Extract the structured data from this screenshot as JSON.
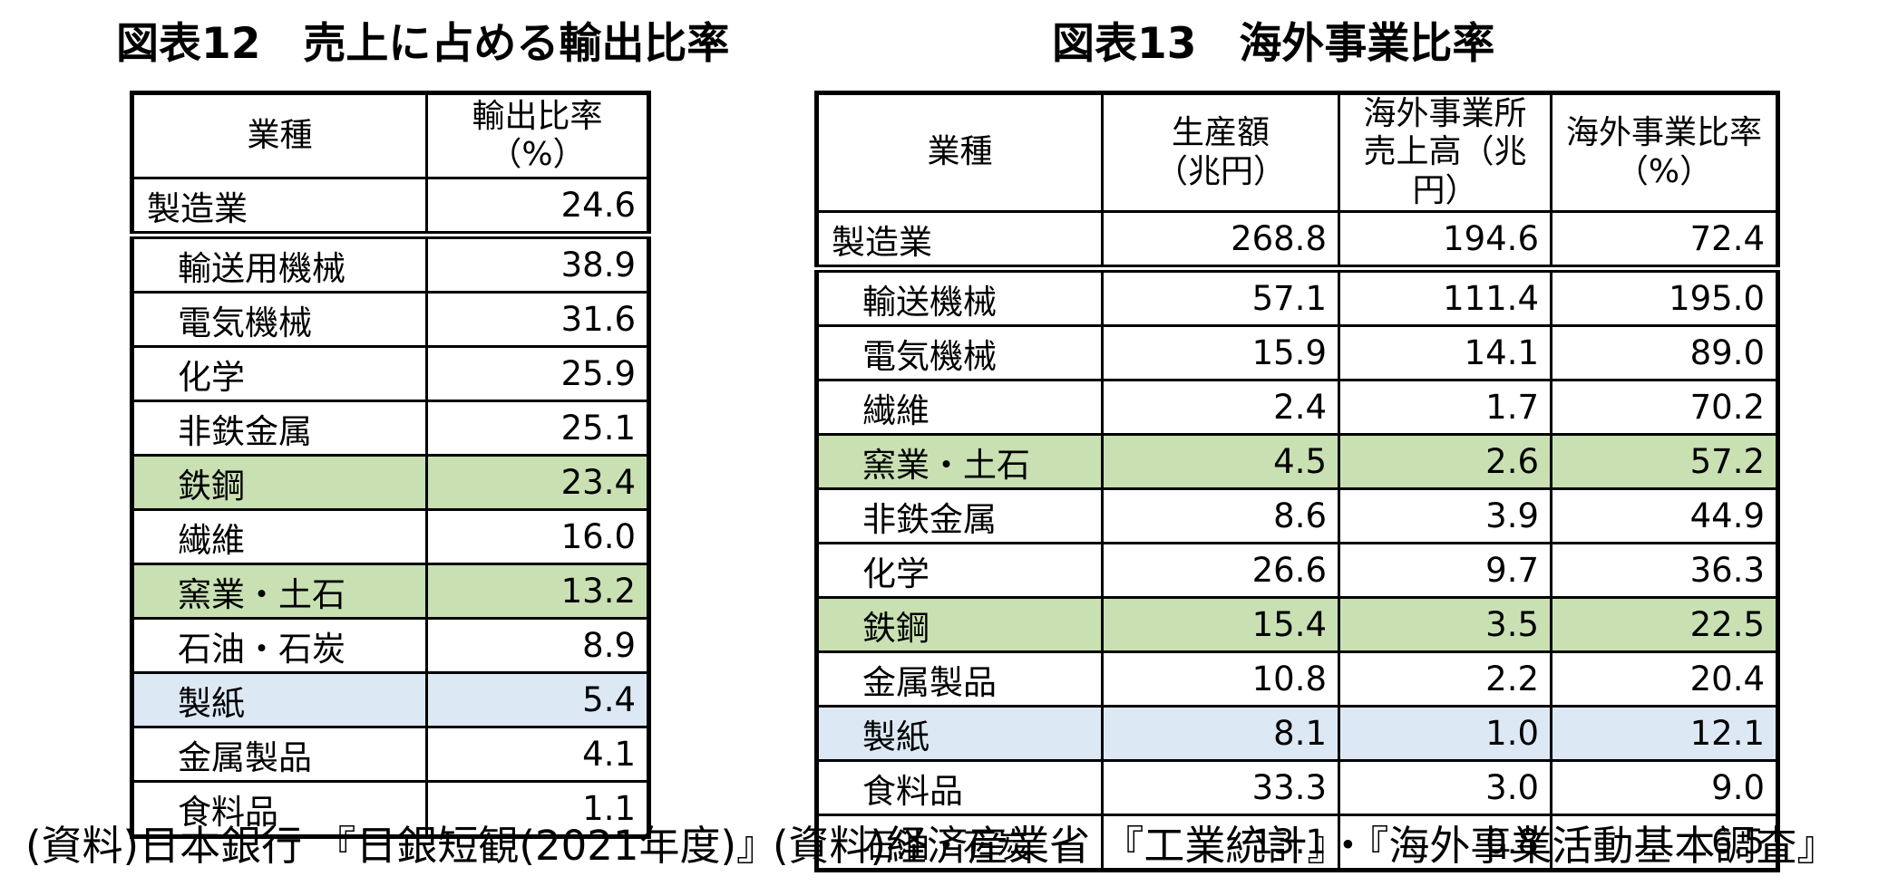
{
  "figure12": {
    "title": "図表12　売上に占める輸出比率",
    "header": [
      [
        "業種"
      ],
      [
        "輸出比率",
        "（%）"
      ]
    ],
    "rows": [
      {
        "label": "製造業",
        "values": [
          "24.6"
        ],
        "indent": false,
        "highlight": "none",
        "separator_below": true
      },
      {
        "label": "輸送用機械",
        "values": [
          "38.9"
        ],
        "indent": true,
        "highlight": "none",
        "separator_below": false
      },
      {
        "label": "電気機械",
        "values": [
          "31.6"
        ],
        "indent": true,
        "highlight": "none",
        "separator_below": false
      },
      {
        "label": "化学",
        "values": [
          "25.9"
        ],
        "indent": true,
        "highlight": "none",
        "separator_below": false
      },
      {
        "label": "非鉄金属",
        "values": [
          "25.1"
        ],
        "indent": true,
        "highlight": "none",
        "separator_below": false
      },
      {
        "label": "鉄鋼",
        "values": [
          "23.4"
        ],
        "indent": true,
        "highlight": "green",
        "separator_below": false
      },
      {
        "label": "繊維",
        "values": [
          "16.0"
        ],
        "indent": true,
        "highlight": "none",
        "separator_below": false
      },
      {
        "label": "窯業・土石",
        "values": [
          "13.2"
        ],
        "indent": true,
        "highlight": "green",
        "separator_below": false
      },
      {
        "label": "石油・石炭",
        "values": [
          "8.9"
        ],
        "indent": true,
        "highlight": "none",
        "separator_below": false
      },
      {
        "label": "製紙",
        "values": [
          "5.4"
        ],
        "indent": true,
        "highlight": "blue",
        "separator_below": false
      },
      {
        "label": "金属製品",
        "values": [
          "4.1"
        ],
        "indent": true,
        "highlight": "none",
        "separator_below": false
      },
      {
        "label": "食料品",
        "values": [
          "1.1"
        ],
        "indent": true,
        "highlight": "none",
        "separator_below": false
      }
    ],
    "source": "(資料)日本銀行 『日銀短観(2021年度)』"
  },
  "figure13": {
    "title": "図表13　海外事業比率",
    "header": [
      [
        "業種"
      ],
      [
        "生産額",
        "（兆円）"
      ],
      [
        "海外事業所",
        "売上高（兆円）"
      ],
      [
        "海外事業比率",
        "（%）"
      ]
    ],
    "rows": [
      {
        "label": "製造業",
        "values": [
          "268.8",
          "194.6",
          "72.4"
        ],
        "indent": false,
        "highlight": "none",
        "separator_below": true
      },
      {
        "label": "輸送機械",
        "values": [
          "57.1",
          "111.4",
          "195.0"
        ],
        "indent": true,
        "highlight": "none",
        "separator_below": false
      },
      {
        "label": "電気機械",
        "values": [
          "15.9",
          "14.1",
          "89.0"
        ],
        "indent": true,
        "highlight": "none",
        "separator_below": false
      },
      {
        "label": "繊維",
        "values": [
          "2.4",
          "1.7",
          "70.2"
        ],
        "indent": true,
        "highlight": "none",
        "separator_below": false
      },
      {
        "label": "窯業・土石",
        "values": [
          "4.5",
          "2.6",
          "57.2"
        ],
        "indent": true,
        "highlight": "green",
        "separator_below": false
      },
      {
        "label": "非鉄金属",
        "values": [
          "8.6",
          "3.9",
          "44.9"
        ],
        "indent": true,
        "highlight": "none",
        "separator_below": false
      },
      {
        "label": "化学",
        "values": [
          "26.6",
          "9.7",
          "36.3"
        ],
        "indent": true,
        "highlight": "none",
        "separator_below": false
      },
      {
        "label": "鉄鋼",
        "values": [
          "15.4",
          "3.5",
          "22.5"
        ],
        "indent": true,
        "highlight": "green",
        "separator_below": false
      },
      {
        "label": "金属製品",
        "values": [
          "10.8",
          "2.2",
          "20.4"
        ],
        "indent": true,
        "highlight": "none",
        "separator_below": false
      },
      {
        "label": "製紙",
        "values": [
          "8.1",
          "1.0",
          "12.1"
        ],
        "indent": true,
        "highlight": "blue",
        "separator_below": false
      },
      {
        "label": "食料品",
        "values": [
          "33.3",
          "3.0",
          "9.0"
        ],
        "indent": true,
        "highlight": "none",
        "separator_below": false
      },
      {
        "label": "石油・石炭",
        "values": [
          "13.1",
          "0.8",
          "6.5"
        ],
        "indent": true,
        "highlight": "none",
        "separator_below": false
      }
    ],
    "source": "(資料)経済産業省 『工業統計』・『海外事業活動基本調査』"
  },
  "colors": {
    "highlight_green": "#C9E0B3",
    "highlight_blue": "#DCE9F5",
    "border": "#000000",
    "text": "#000000",
    "background": "#FFFFFF"
  }
}
